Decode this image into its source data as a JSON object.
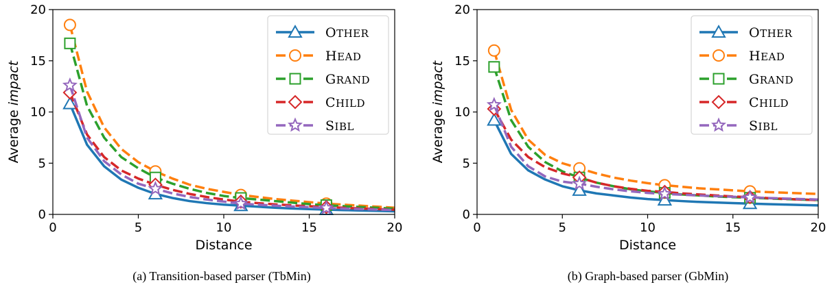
{
  "chart_data": [
    {
      "type": "line",
      "caption": "(a) Transition-based parser (TbMin)",
      "xlabel": "Distance",
      "ylabel_prefix": "Average ",
      "ylabel_emph": "impact",
      "xlim": [
        0,
        20
      ],
      "ylim": [
        0,
        20
      ],
      "xticks": [
        0,
        5,
        10,
        15,
        20
      ],
      "yticks": [
        0,
        5,
        10,
        15,
        20
      ],
      "legend_position": "top-right",
      "x": [
        1,
        2,
        3,
        4,
        5,
        6,
        7,
        8,
        9,
        10,
        11,
        12,
        13,
        14,
        15,
        16,
        17,
        18,
        19,
        20
      ],
      "markers_at": [
        1,
        6,
        11,
        16
      ],
      "series": [
        {
          "name": "Other",
          "color": "#1f77b4",
          "style": "solid",
          "marker": "triangle",
          "values": [
            10.8,
            6.8,
            4.7,
            3.4,
            2.6,
            2.0,
            1.6,
            1.3,
            1.1,
            0.95,
            0.85,
            0.75,
            0.65,
            0.58,
            0.52,
            0.47,
            0.42,
            0.38,
            0.34,
            0.3
          ]
        },
        {
          "name": "Head",
          "color": "#ff7f0e",
          "style": "dashed",
          "marker": "circle",
          "values": [
            18.5,
            12.0,
            8.5,
            6.4,
            5.1,
            4.2,
            3.5,
            2.9,
            2.5,
            2.2,
            1.9,
            1.7,
            1.5,
            1.35,
            1.2,
            1.05,
            0.95,
            0.85,
            0.75,
            0.65
          ]
        },
        {
          "name": "Grand",
          "color": "#2ca02c",
          "style": "dashed",
          "marker": "square",
          "values": [
            16.7,
            10.6,
            7.5,
            5.6,
            4.5,
            3.6,
            3.0,
            2.5,
            2.1,
            1.8,
            1.6,
            1.45,
            1.3,
            1.15,
            1.0,
            0.9,
            0.8,
            0.72,
            0.64,
            0.56
          ]
        },
        {
          "name": "Child",
          "color": "#d62728",
          "style": "dashed",
          "marker": "diamond",
          "values": [
            11.9,
            7.8,
            5.6,
            4.3,
            3.5,
            2.9,
            2.4,
            2.0,
            1.7,
            1.45,
            1.25,
            1.1,
            0.98,
            0.88,
            0.8,
            0.72,
            0.65,
            0.58,
            0.52,
            0.46
          ]
        },
        {
          "name": "Sibl",
          "color": "#9467bd",
          "style": "dashed",
          "marker": "star",
          "values": [
            12.6,
            7.5,
            5.2,
            3.9,
            3.0,
            2.5,
            2.05,
            1.7,
            1.45,
            1.25,
            1.05,
            0.95,
            0.85,
            0.77,
            0.7,
            0.63,
            0.57,
            0.52,
            0.47,
            0.42
          ]
        }
      ]
    },
    {
      "type": "line",
      "caption": "(b) Graph-based parser (GbMin)",
      "xlabel": "Distance",
      "ylabel_prefix": "Average ",
      "ylabel_emph": "impact",
      "xlim": [
        0,
        20
      ],
      "ylim": [
        0,
        20
      ],
      "xticks": [
        0,
        5,
        10,
        15,
        20
      ],
      "yticks": [
        0,
        5,
        10,
        15,
        20
      ],
      "legend_position": "top-right",
      "x": [
        1,
        2,
        3,
        4,
        5,
        6,
        7,
        8,
        9,
        10,
        11,
        12,
        13,
        14,
        15,
        16,
        17,
        18,
        19,
        20
      ],
      "markers_at": [
        1,
        6,
        11,
        16
      ],
      "series": [
        {
          "name": "Other",
          "color": "#1f77b4",
          "style": "solid",
          "marker": "triangle",
          "values": [
            9.2,
            5.9,
            4.3,
            3.4,
            2.75,
            2.35,
            2.05,
            1.85,
            1.65,
            1.5,
            1.4,
            1.3,
            1.22,
            1.16,
            1.1,
            1.05,
            1.0,
            0.96,
            0.92,
            0.88
          ]
        },
        {
          "name": "Head",
          "color": "#ff7f0e",
          "style": "dashed",
          "marker": "circle",
          "values": [
            16.0,
            10.2,
            7.3,
            5.8,
            5.0,
            4.5,
            4.0,
            3.6,
            3.3,
            3.05,
            2.85,
            2.7,
            2.55,
            2.45,
            2.35,
            2.25,
            2.18,
            2.12,
            2.06,
            2.0
          ]
        },
        {
          "name": "Grand",
          "color": "#2ca02c",
          "style": "dashed",
          "marker": "square",
          "values": [
            14.4,
            9.2,
            6.6,
            5.1,
            4.2,
            3.6,
            3.1,
            2.75,
            2.45,
            2.25,
            2.1,
            1.95,
            1.85,
            1.75,
            1.68,
            1.62,
            1.56,
            1.5,
            1.45,
            1.4
          ]
        },
        {
          "name": "Child",
          "color": "#d62728",
          "style": "dashed",
          "marker": "diamond",
          "values": [
            10.3,
            7.3,
            5.6,
            4.6,
            4.0,
            3.6,
            3.1,
            2.75,
            2.5,
            2.3,
            2.2,
            2.05,
            1.95,
            1.85,
            1.75,
            1.68,
            1.6,
            1.52,
            1.45,
            1.4
          ]
        },
        {
          "name": "Sibl",
          "color": "#9467bd",
          "style": "dashed",
          "marker": "star",
          "values": [
            10.7,
            6.6,
            4.7,
            3.7,
            3.2,
            3.0,
            2.7,
            2.45,
            2.25,
            2.1,
            2.0,
            1.92,
            1.85,
            1.78,
            1.72,
            1.66,
            1.6,
            1.55,
            1.5,
            1.45
          ]
        }
      ]
    }
  ]
}
